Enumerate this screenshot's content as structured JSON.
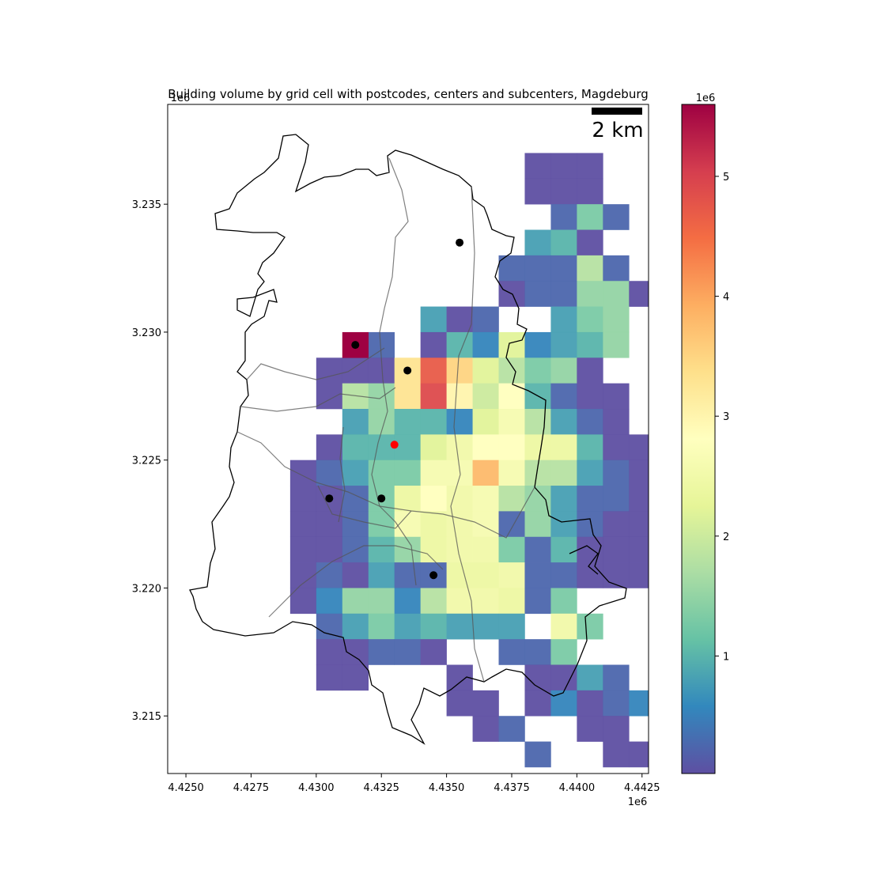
{
  "chart_data": {
    "type": "heatmap",
    "title": "Building volume by grid cell with postcodes, centers and subcenters, Magdeburg",
    "xlabel": "",
    "ylabel": "",
    "x_offset_label": "1e6",
    "y_offset_label": "1e6",
    "colorbar_offset_label": "1e6",
    "xlim": [
      4.4243,
      4.44275
    ],
    "ylim": [
      3.21275,
      3.2389
    ],
    "x_ticks": [
      4.425,
      4.4275,
      4.43,
      4.4325,
      4.435,
      4.4375,
      4.44,
      4.4425
    ],
    "x_tick_labels": [
      "4.4250",
      "4.4275",
      "4.4300",
      "4.4325",
      "4.4350",
      "4.4375",
      "4.4400",
      "4.4425"
    ],
    "y_ticks": [
      3.215,
      3.22,
      3.225,
      3.23,
      3.235
    ],
    "y_tick_labels": [
      "3.215",
      "3.220",
      "3.225",
      "3.230",
      "3.235"
    ],
    "colorbar": {
      "colormap": "Spectral_r",
      "min": 0.02,
      "max": 5.6,
      "ticks": [
        1,
        2,
        3,
        4,
        5
      ],
      "tick_labels": [
        "1",
        "2",
        "3",
        "4",
        "5"
      ]
    },
    "cell_size": 0.001,
    "grid_x0": 4.426,
    "grid_y_top": 3.237,
    "cells": [
      "            aaa     ",
      "            aaa     ",
      "             bfb    ",
      "            dea     ",
      "           bbbhb    ",
      "           abbgga   ",
      "        dab  dfg a  ",
      "      b aecjcdeg    ",
      "    aaaqurjhfga     ",
      "    ahgqvpinebaa    ",
      "     dgeecjmhdba    ",
      "    aeeejlnnkkeaaa  ",
      "   abdffmmsmhhdba   ",
      "   aabfknlmhgdbba   ",
      "   aabfmklmbgdbaa   ",
      "   aabegkllfbeaaa   ",
      "   abadbbkklbbaaaa  ",
      "   acggchllkbf   c  ",
      "    bdfdeddd lf   ba ",
      "    aabba  bbf   a   ",
      "    aa   a  aadb  aaa",
      "         aa acabc  aa",
      "          ab  aa  aa ",
      "            b  aa aa ",
      "                     ",
      "          a          "
    ],
    "cell_values_legend": "a=0.02 b=0.25 c=0.55 d=0.80 e=1.0 f=1.3 g=1.5 h=1.8 i=2.0 j=2.2 k=2.4 l=2.5 m=2.6 n=2.8 p=3.0 q=3.3 r=3.5 s=3.8 u=4.7 v=4.9",
    "level_map": {
      "a": 0.02,
      "b": 0.25,
      "c": 0.55,
      "d": 0.8,
      "e": 1.0,
      "f": 1.3,
      "g": 1.5,
      "h": 1.8,
      "i": 2.0,
      "j": 2.2,
      "k": 2.4,
      "l": 2.5,
      "m": 2.6,
      "n": 2.8,
      "p": 3.0,
      "q": 3.3,
      "r": 3.5,
      "s": 3.8,
      "u": 4.7,
      "v": 4.9,
      "w": 5.6
    },
    "center": {
      "x": 4.433,
      "y": 3.2256
    },
    "subcenters": [
      {
        "x": 4.4355,
        "y": 3.2335
      },
      {
        "x": 4.4315,
        "y": 3.2295
      },
      {
        "x": 4.4335,
        "y": 3.2285
      },
      {
        "x": 4.4305,
        "y": 3.2235
      },
      {
        "x": 4.4325,
        "y": 3.2235
      },
      {
        "x": 4.4345,
        "y": 3.2205
      }
    ],
    "scalebar_label": "2 km",
    "colors": {
      "center": "#ff0000",
      "subcenter": "#000000",
      "boundary": "#000000",
      "postcode_lines": "#555555"
    }
  }
}
